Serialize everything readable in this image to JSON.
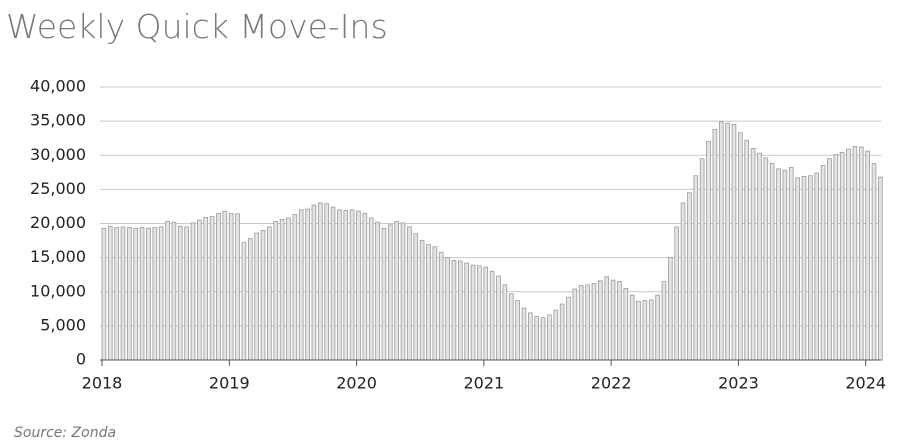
{
  "chart_data": {
    "type": "bar",
    "title": "Weekly Quick Move-Ins",
    "source": "Source: Zonda",
    "color": "#e4e4e4",
    "edge_color": "#9a9a9a",
    "grid": true,
    "x": [
      2018,
      2018.05,
      2018.1,
      2018.15,
      2018.2,
      2018.25,
      2018.3,
      2018.35,
      2018.4,
      2018.45,
      2018.5,
      2018.55,
      2018.6,
      2018.65,
      2018.7,
      2018.75,
      2018.8,
      2018.85,
      2018.9,
      2018.95,
      2019,
      2019.05,
      2019.1,
      2019.15,
      2019.2,
      2019.25,
      2019.3,
      2019.35,
      2019.4,
      2019.45,
      2019.5,
      2019.55,
      2019.6,
      2019.65,
      2019.7,
      2019.75,
      2019.8,
      2019.85,
      2019.9,
      2019.95,
      2020,
      2020.05,
      2020.1,
      2020.15,
      2020.2,
      2020.25,
      2020.3,
      2020.35,
      2020.4,
      2020.45,
      2020.5,
      2020.55,
      2020.6,
      2020.65,
      2020.7,
      2020.75,
      2020.8,
      2020.85,
      2020.9,
      2020.95,
      2021,
      2021.05,
      2021.1,
      2021.15,
      2021.2,
      2021.25,
      2021.3,
      2021.35,
      2021.4,
      2021.45,
      2021.5,
      2021.55,
      2021.6,
      2021.65,
      2021.7,
      2021.75,
      2021.8,
      2021.85,
      2021.9,
      2021.95,
      2022,
      2022.05,
      2022.1,
      2022.15,
      2022.2,
      2022.25,
      2022.3,
      2022.35,
      2022.4,
      2022.45,
      2022.5,
      2022.55,
      2022.6,
      2022.65,
      2022.7,
      2022.75,
      2022.8,
      2022.85,
      2022.9,
      2022.95,
      2023,
      2023.05,
      2023.1,
      2023.15,
      2023.2,
      2023.25,
      2023.3,
      2023.35,
      2023.4,
      2023.45,
      2023.5,
      2023.55,
      2023.6,
      2023.65,
      2023.7,
      2023.75,
      2023.8,
      2023.85,
      2023.9,
      2023.95,
      2024,
      2024.05,
      2024.1
    ],
    "values": [
      19300,
      19600,
      19400,
      19500,
      19400,
      19300,
      19400,
      19300,
      19400,
      19500,
      20300,
      20200,
      19600,
      19500,
      20100,
      20500,
      20900,
      21000,
      21500,
      21800,
      21500,
      21400,
      17200,
      17800,
      18600,
      19000,
      19500,
      20300,
      20600,
      20800,
      21300,
      22000,
      22100,
      22700,
      23000,
      22900,
      22400,
      22000,
      21900,
      22000,
      21800,
      21500,
      20800,
      20200,
      19300,
      19800,
      20300,
      20100,
      19500,
      18500,
      17500,
      16900,
      16600,
      15800,
      15000,
      14600,
      14500,
      14200,
      13900,
      13800,
      13600,
      13000,
      12300,
      11000,
      9700,
      8700,
      7600,
      6900,
      6400,
      6200,
      6600,
      7300,
      8200,
      9200,
      10400,
      10900,
      11000,
      11200,
      11600,
      12200,
      11700,
      11500,
      10500,
      9500,
      8600,
      8700,
      8800,
      9500,
      11500,
      15000,
      19500,
      23000,
      24500,
      27000,
      29500,
      32000,
      33800,
      34900,
      34700,
      34500,
      33300,
      32200,
      31000,
      30300,
      29600,
      28800,
      28000,
      27800,
      28200,
      26700,
      26900,
      27000,
      27400,
      28500,
      29500,
      30100,
      30400,
      30900,
      31300,
      31200,
      30600,
      28800,
      26800
    ],
    "xlim": [
      2018,
      2024.12
    ],
    "xticks": [
      2018,
      2019,
      2020,
      2021,
      2022,
      2023,
      2024
    ],
    "ylim": [
      0,
      40000
    ],
    "yticks": [
      0,
      {
        "value": 5000,
        "label": "5,000"
      },
      {
        "value": 10000,
        "label": "10,000"
      },
      {
        "value": 15000,
        "label": "15,000"
      },
      {
        "value": 20000,
        "label": "20,000"
      },
      {
        "value": 25000,
        "label": "25,000"
      },
      {
        "value": 30000,
        "label": "30,000"
      },
      {
        "value": 35000,
        "label": "35,000"
      },
      {
        "value": 40000,
        "label": "40,000"
      }
    ]
  }
}
